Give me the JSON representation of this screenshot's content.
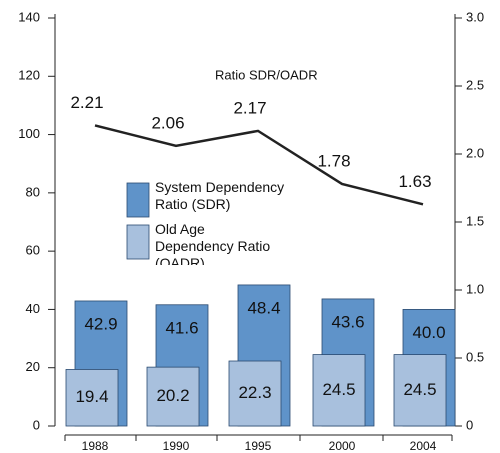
{
  "chart_data": {
    "type": "bar",
    "annotation": "Ratio SDR/OADR",
    "categories": [
      "1988",
      "1990",
      "1995",
      "2000",
      "2004"
    ],
    "series": [
      {
        "name": "System Dependency Ratio (SDR)",
        "color": "#5f93c9",
        "values": [
          42.9,
          41.6,
          48.4,
          43.6,
          40
        ],
        "value_labels": [
          "42.9",
          "41.6",
          "48.4",
          "43.6",
          "40.0"
        ]
      },
      {
        "name": "Old Age Dependency Ratio (OADR)",
        "color": "#a8c0dd",
        "values": [
          19.4,
          20.2,
          22.3,
          24.5,
          24.5
        ]
      },
      {
        "name": "Ratio SDR/OADR",
        "type": "line",
        "axis": "y2",
        "color": "#222222",
        "values": [
          2.21,
          2.06,
          2.17,
          1.78,
          1.63
        ]
      }
    ],
    "ylim": [
      0,
      140
    ],
    "yticks": [
      0,
      20,
      40,
      60,
      80,
      100,
      120,
      140
    ],
    "y2lim": [
      0,
      3
    ],
    "y2ticks": [
      0,
      0.5,
      {
        "value": 1,
        "label": "1.0"
      },
      1.5,
      {
        "value": 2,
        "label": "2.0"
      },
      2.5,
      {
        "value": 3,
        "label": "3.0"
      }
    ]
  }
}
